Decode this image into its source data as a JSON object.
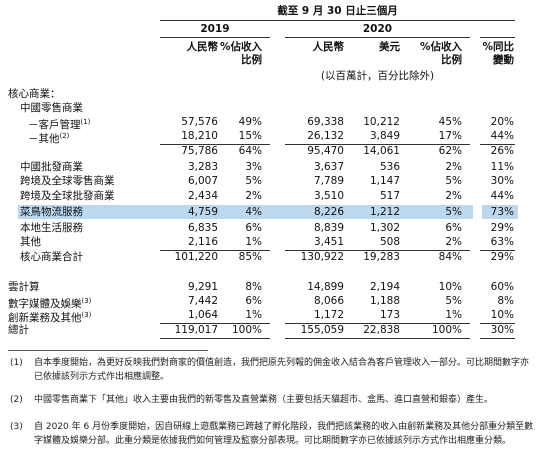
{
  "header": {
    "period": "截至 9 月 30 日止三個月",
    "years": [
      "2019",
      "2020"
    ],
    "columns": [
      [
        "人民幣"
      ],
      [
        "%佔收入",
        "比例"
      ],
      [
        "人民幣"
      ],
      [
        "美元"
      ],
      [
        "%佔收入",
        "比例"
      ],
      [
        "%同比",
        "變動"
      ]
    ],
    "unit_note": "(以百萬計，百分比除外)"
  },
  "table": {
    "rows": [
      {
        "label": "核心商業："
      },
      {
        "label": "中國零售商業"
      },
      {
        "label": "－客戶管理",
        "note": "(1)",
        "cells": [
          "57,576",
          "49%",
          "69,338",
          "10,212",
          "45%",
          "20%"
        ]
      },
      {
        "label": "－其他",
        "note": "(2)",
        "cells": [
          "18,210",
          "15%",
          "26,132",
          "3,849",
          "17%",
          "44%"
        ]
      },
      {
        "label": null,
        "cells": [
          "75,786",
          "64%",
          "95,470",
          "14,061",
          "62%",
          "26%"
        ]
      },
      {
        "label": "中國批發商業",
        "cells": [
          "3,283",
          "3%",
          "3,637",
          "536",
          "2%",
          "11%"
        ]
      },
      {
        "label": "跨境及全球零售商業",
        "cells": [
          "6,007",
          "5%",
          "7,789",
          "1,147",
          "5%",
          "30%"
        ]
      },
      {
        "label": "跨境及全球批發商業",
        "cells": [
          "2,434",
          "2%",
          "3,510",
          "517",
          "2%",
          "44%"
        ]
      },
      {
        "label": "菜鳥物流服務",
        "cells": [
          "4,759",
          "4%",
          "8,226",
          "1,212",
          "5%",
          "73%"
        ]
      },
      {
        "label": "本地生活服務",
        "cells": [
          "6,835",
          "6%",
          "8,839",
          "1,302",
          "6%",
          "29%"
        ]
      },
      {
        "label": "其他",
        "cells": [
          "2,116",
          "1%",
          "3,451",
          "508",
          "2%",
          "63%"
        ]
      },
      {
        "label": "核心商業合計",
        "cells": [
          "101,220",
          "85%",
          "130,922",
          "19,283",
          "84%",
          "29%"
        ]
      },
      {
        "label": "雲計算",
        "cells": [
          "9,291",
          "8%",
          "14,899",
          "2,194",
          "10%",
          "60%"
        ]
      },
      {
        "label": "數字媒體及娛樂",
        "note": "(3)",
        "cells": [
          "7,442",
          "6%",
          "8,066",
          "1,188",
          "5%",
          "8%"
        ]
      },
      {
        "label": "創新業務及其他",
        "note": "(3)",
        "cells": [
          "1,064",
          "1%",
          "1,172",
          "173",
          "1%",
          "10%"
        ]
      },
      {
        "label": "總計",
        "cells": [
          "119,017",
          "100%",
          "155,059",
          "22,838",
          "100%",
          "30%"
        ]
      }
    ]
  },
  "footnotes": [
    {
      "mark": "(1)",
      "text": "自本季度開始，為更好反映我們對商家的價值創造，我們把原先列報的佣金收入結合為客戶管理收入一部分。可比期間數字亦已依據該列示方式作出相應調整。"
    },
    {
      "mark": "(2)",
      "text": "中國零售商業下「其他」收入主要由我們的新零售及直營業務（主要包括天貓超市、盒馬、進口直營和銀泰）產生。"
    },
    {
      "mark": "(3)",
      "text": "自 2020 年 6 月份季度開始，因自研線上遊戲業務已跨越了孵化階段，我們把該業務的收入由創新業務及其他分部重分類至數字媒體及娛樂分部。此重分類是依據我們如何管理及監察分部表現。可比期間數字亦已依據該列示方式作出相應重分類。"
    }
  ]
}
